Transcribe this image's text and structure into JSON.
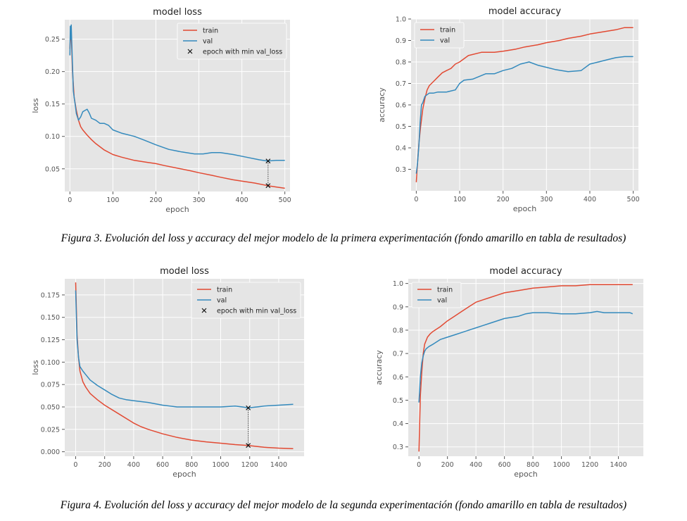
{
  "captions": [
    "Figura 3. Evolución del loss y accuracy del mejor modelo de la  primera experimentación (fondo amarillo en tabla de resultados)",
    "Figura 4. Evolución del loss y accuracy del mejor modelo de la segunda experimentación (fondo amarillo en tabla de resultados)"
  ],
  "colors": {
    "train": "#e24a33",
    "val": "#348abd",
    "panel": "#e5e5e5",
    "grid": "#ffffff",
    "text": "#555555"
  },
  "chart_data": [
    {
      "type": "line",
      "title": "model loss",
      "xlabel": "epoch",
      "ylabel": "loss",
      "xlim": [
        -12,
        512
      ],
      "ylim": [
        0.015,
        0.28
      ],
      "xticks": [
        0,
        100,
        200,
        300,
        400,
        500
      ],
      "yticks": [
        0.05,
        0.1,
        0.15,
        0.2,
        0.25
      ],
      "ytick_labels": [
        "0.05",
        "0.10",
        "0.15",
        "0.20",
        "0.25"
      ],
      "grid": true,
      "legend": "top-right",
      "series": [
        {
          "name": "train",
          "color": "#e24a33",
          "x": [
            0,
            2,
            4,
            6,
            8,
            10,
            15,
            20,
            25,
            30,
            40,
            50,
            60,
            80,
            100,
            120,
            150,
            180,
            200,
            220,
            250,
            280,
            300,
            330,
            350,
            380,
            400,
            430,
            460,
            480,
            500
          ],
          "y": [
            0.235,
            0.265,
            0.24,
            0.2,
            0.18,
            0.16,
            0.14,
            0.125,
            0.115,
            0.11,
            0.102,
            0.095,
            0.089,
            0.079,
            0.072,
            0.068,
            0.063,
            0.06,
            0.058,
            0.055,
            0.051,
            0.047,
            0.044,
            0.04,
            0.037,
            0.033,
            0.031,
            0.028,
            0.024,
            0.022,
            0.02
          ]
        },
        {
          "name": "val",
          "color": "#348abd",
          "x": [
            0,
            1,
            2,
            3,
            4,
            6,
            8,
            10,
            12,
            15,
            20,
            25,
            30,
            35,
            40,
            45,
            50,
            60,
            70,
            80,
            90,
            100,
            120,
            150,
            170,
            200,
            230,
            260,
            290,
            310,
            330,
            350,
            380,
            410,
            440,
            460,
            480,
            500
          ],
          "y": [
            0.225,
            0.27,
            0.25,
            0.272,
            0.25,
            0.21,
            0.17,
            0.16,
            0.15,
            0.135,
            0.125,
            0.13,
            0.138,
            0.14,
            0.142,
            0.136,
            0.128,
            0.125,
            0.12,
            0.12,
            0.117,
            0.11,
            0.105,
            0.1,
            0.095,
            0.087,
            0.08,
            0.076,
            0.073,
            0.073,
            0.075,
            0.075,
            0.072,
            0.068,
            0.064,
            0.062,
            0.063,
            0.063
          ]
        }
      ],
      "marker": {
        "label": "epoch with min val_loss",
        "x": 461,
        "y_val": 0.062,
        "y_train": 0.024
      }
    },
    {
      "type": "line",
      "title": "model accuracy",
      "xlabel": "epoch",
      "ylabel": "accuracy",
      "xlim": [
        -12,
        512
      ],
      "ylim": [
        0.2,
        1.0
      ],
      "xticks": [
        0,
        100,
        200,
        300,
        400,
        500
      ],
      "yticks": [
        0.3,
        0.4,
        0.5,
        0.6,
        0.7,
        0.8,
        0.9,
        1.0
      ],
      "ytick_labels": [
        "0.3",
        "0.4",
        "0.5",
        "0.6",
        "0.7",
        "0.8",
        "0.9",
        "1.0"
      ],
      "grid": true,
      "legend": "top-left",
      "series": [
        {
          "name": "train",
          "color": "#e24a33",
          "x": [
            0,
            3,
            6,
            10,
            15,
            20,
            25,
            30,
            40,
            50,
            60,
            70,
            80,
            90,
            100,
            120,
            150,
            180,
            200,
            230,
            250,
            280,
            300,
            330,
            350,
            380,
            400,
            430,
            460,
            480,
            500
          ],
          "y": [
            0.24,
            0.33,
            0.42,
            0.5,
            0.58,
            0.63,
            0.67,
            0.69,
            0.71,
            0.73,
            0.75,
            0.76,
            0.77,
            0.79,
            0.8,
            0.83,
            0.845,
            0.845,
            0.85,
            0.86,
            0.87,
            0.88,
            0.89,
            0.9,
            0.91,
            0.92,
            0.93,
            0.94,
            0.95,
            0.96,
            0.96
          ]
        },
        {
          "name": "val",
          "color": "#348abd",
          "x": [
            0,
            3,
            6,
            9,
            12,
            15,
            20,
            30,
            40,
            50,
            70,
            90,
            100,
            110,
            130,
            160,
            180,
            200,
            220,
            240,
            260,
            280,
            300,
            320,
            350,
            380,
            400,
            420,
            440,
            460,
            480,
            500
          ],
          "y": [
            0.28,
            0.33,
            0.41,
            0.52,
            0.6,
            0.61,
            0.64,
            0.655,
            0.655,
            0.66,
            0.66,
            0.67,
            0.7,
            0.715,
            0.72,
            0.745,
            0.745,
            0.76,
            0.77,
            0.79,
            0.8,
            0.785,
            0.775,
            0.765,
            0.755,
            0.76,
            0.79,
            0.8,
            0.81,
            0.82,
            0.825,
            0.825
          ]
        }
      ]
    },
    {
      "type": "line",
      "title": "model loss",
      "xlabel": "epoch",
      "ylabel": "loss",
      "xlim": [
        -75,
        1575
      ],
      "ylim": [
        -0.005,
        0.193
      ],
      "xticks": [
        0,
        200,
        400,
        600,
        800,
        1000,
        1200,
        1400
      ],
      "yticks": [
        0.0,
        0.025,
        0.05,
        0.075,
        0.1,
        0.125,
        0.15,
        0.175
      ],
      "ytick_labels": [
        "0.000",
        "0.025",
        "0.050",
        "0.075",
        "0.100",
        "0.125",
        "0.150",
        "0.175"
      ],
      "grid": true,
      "legend": "top-right",
      "series": [
        {
          "name": "train",
          "color": "#e24a33",
          "x": [
            0,
            5,
            10,
            20,
            30,
            50,
            70,
            100,
            150,
            200,
            300,
            400,
            450,
            500,
            600,
            700,
            800,
            900,
            1000,
            1100,
            1190,
            1300,
            1400,
            1500
          ],
          "y": [
            0.189,
            0.16,
            0.13,
            0.105,
            0.09,
            0.078,
            0.072,
            0.065,
            0.058,
            0.052,
            0.042,
            0.032,
            0.028,
            0.025,
            0.02,
            0.016,
            0.013,
            0.011,
            0.0095,
            0.008,
            0.007,
            0.005,
            0.004,
            0.0035
          ]
        },
        {
          "name": "val",
          "color": "#348abd",
          "x": [
            0,
            5,
            10,
            20,
            30,
            50,
            70,
            100,
            150,
            200,
            250,
            300,
            350,
            400,
            500,
            600,
            700,
            750,
            800,
            900,
            1000,
            1100,
            1150,
            1190,
            1250,
            1300,
            1400,
            1500
          ],
          "y": [
            0.18,
            0.15,
            0.125,
            0.105,
            0.095,
            0.09,
            0.086,
            0.08,
            0.074,
            0.069,
            0.064,
            0.06,
            0.058,
            0.057,
            0.055,
            0.052,
            0.05,
            0.05,
            0.05,
            0.05,
            0.05,
            0.051,
            0.05,
            0.049,
            0.05,
            0.051,
            0.052,
            0.053
          ]
        }
      ],
      "marker": {
        "label": "epoch with min val_loss",
        "x": 1190,
        "y_val": 0.049,
        "y_train": 0.007
      }
    },
    {
      "type": "line",
      "title": "model accuracy",
      "xlabel": "epoch",
      "ylabel": "accuracy",
      "xlim": [
        -75,
        1575
      ],
      "ylim": [
        0.26,
        1.02
      ],
      "xticks": [
        0,
        200,
        400,
        600,
        800,
        1000,
        1200,
        1400
      ],
      "yticks": [
        0.3,
        0.4,
        0.5,
        0.6,
        0.7,
        0.8,
        0.9,
        1.0
      ],
      "ytick_labels": [
        "0.3",
        "0.4",
        "0.5",
        "0.6",
        "0.7",
        "0.8",
        "0.9",
        "1.0"
      ],
      "grid": true,
      "legend": "top-left",
      "series": [
        {
          "name": "train",
          "color": "#e24a33",
          "x": [
            0,
            10,
            20,
            30,
            40,
            60,
            80,
            100,
            150,
            200,
            250,
            300,
            350,
            400,
            450,
            500,
            550,
            600,
            700,
            800,
            900,
            1000,
            1100,
            1200,
            1300,
            1400,
            1500
          ],
          "y": [
            0.28,
            0.52,
            0.62,
            0.7,
            0.74,
            0.77,
            0.785,
            0.795,
            0.815,
            0.84,
            0.86,
            0.88,
            0.9,
            0.92,
            0.93,
            0.94,
            0.95,
            0.96,
            0.97,
            0.98,
            0.985,
            0.99,
            0.99,
            0.995,
            0.995,
            0.995,
            0.995
          ]
        },
        {
          "name": "val",
          "color": "#348abd",
          "x": [
            0,
            10,
            20,
            30,
            40,
            50,
            70,
            100,
            150,
            200,
            250,
            300,
            350,
            400,
            450,
            500,
            600,
            700,
            750,
            800,
            900,
            1000,
            1100,
            1200,
            1250,
            1300,
            1400,
            1480,
            1500
          ],
          "y": [
            0.49,
            0.6,
            0.66,
            0.69,
            0.71,
            0.72,
            0.73,
            0.74,
            0.76,
            0.77,
            0.78,
            0.79,
            0.8,
            0.81,
            0.82,
            0.83,
            0.85,
            0.86,
            0.87,
            0.875,
            0.875,
            0.87,
            0.87,
            0.875,
            0.88,
            0.875,
            0.875,
            0.875,
            0.87
          ]
        }
      ]
    }
  ]
}
